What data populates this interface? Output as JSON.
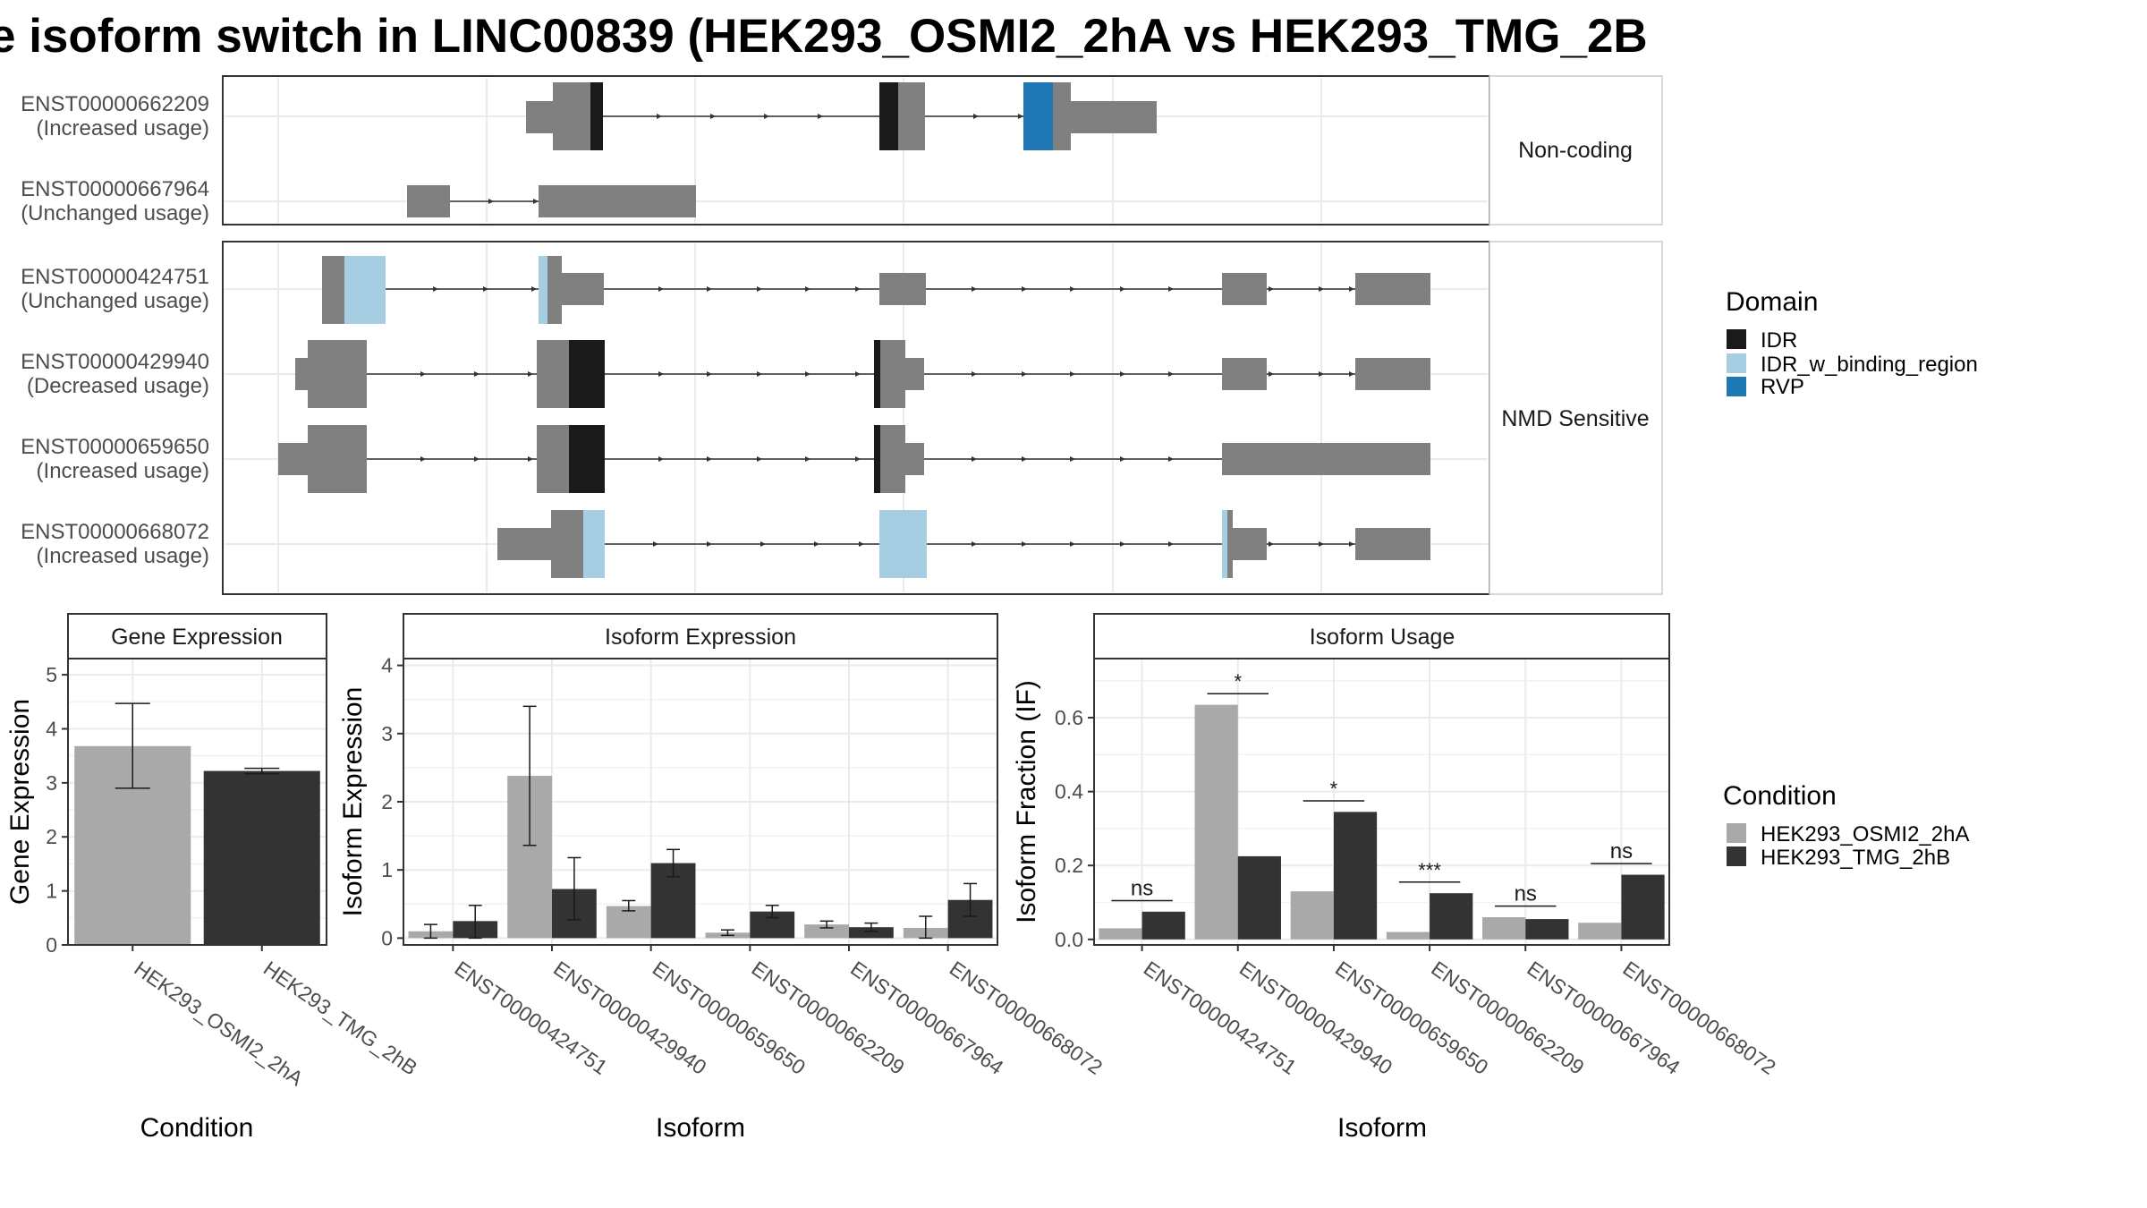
{
  "title": "e isoform switch in LINC00839 (HEK293_OSMI2_2hA vs HEK293_TMG_2B",
  "colors": {
    "exon": "#808080",
    "IDR": "#1a1a1a",
    "IDR_w_binding_region": "#a6cee3",
    "RVP": "#1f78b4",
    "cond_a": "#a9a9a9",
    "cond_b": "#333333"
  },
  "structure": {
    "facets": [
      {
        "label": "Non-coding",
        "transcripts": [
          {
            "id": "ENST00000662209",
            "usage": "(Increased usage)"
          },
          {
            "id": "ENST00000667964",
            "usage": "(Unchanged usage)"
          }
        ]
      },
      {
        "label": "NMD Sensitive",
        "transcripts": [
          {
            "id": "ENST00000424751",
            "usage": "(Unchanged usage)"
          },
          {
            "id": "ENST00000429940",
            "usage": "(Decreased usage)"
          },
          {
            "id": "ENST00000659650",
            "usage": "(Increased usage)"
          },
          {
            "id": "ENST00000668072",
            "usage": "(Increased usage)"
          }
        ]
      }
    ],
    "domain_legend": {
      "title": "Domain",
      "items": [
        {
          "name": "IDR",
          "color": "#1a1a1a"
        },
        {
          "name": "IDR_w_binding_region",
          "color": "#a6cee3"
        },
        {
          "name": "RVP",
          "color": "#1f78b4"
        }
      ]
    }
  },
  "chart_data": [
    {
      "type": "bar",
      "title": "Gene Expression",
      "xlabel": "Condition",
      "ylabel": "Gene Expression",
      "ylim": [
        0,
        5.3
      ],
      "yticks": [
        0,
        1,
        2,
        3,
        4,
        5
      ],
      "categories": [
        "HEK293_OSMI2_2hA",
        "HEK293_TMG_2hB"
      ],
      "values": [
        3.68,
        3.22
      ],
      "error_low": [
        2.9,
        3.17
      ],
      "error_high": [
        4.47,
        3.27
      ],
      "colors": [
        "#a9a9a9",
        "#333333"
      ]
    },
    {
      "type": "bar",
      "title": "Isoform Expression",
      "xlabel": "Isoform",
      "ylabel": "Isoform Expression",
      "ylim": [
        -0.1,
        4.1
      ],
      "yticks": [
        0,
        1,
        2,
        3,
        4
      ],
      "categories": [
        "ENST00000424751",
        "ENST00000429940",
        "ENST00000659650",
        "ENST00000662209",
        "ENST00000667964",
        "ENST00000668072"
      ],
      "series": [
        {
          "name": "HEK293_OSMI2_2hA",
          "values": [
            0.1,
            2.38,
            0.47,
            0.08,
            0.2,
            0.15
          ],
          "error_low": [
            0.0,
            1.36,
            0.4,
            0.04,
            0.15,
            0.0
          ],
          "error_high": [
            0.2,
            3.4,
            0.55,
            0.12,
            0.25,
            0.32
          ]
        },
        {
          "name": "HEK293_TMG_2hB",
          "values": [
            0.25,
            0.72,
            1.1,
            0.39,
            0.16,
            0.56
          ],
          "error_low": [
            0.0,
            0.27,
            0.9,
            0.3,
            0.1,
            0.32
          ],
          "error_high": [
            0.48,
            1.18,
            1.3,
            0.48,
            0.22,
            0.8
          ]
        }
      ]
    },
    {
      "type": "bar",
      "title": "Isoform Usage",
      "xlabel": "Isoform",
      "ylabel": "Isoform Fraction (IF)",
      "ylim": [
        -0.015,
        0.76
      ],
      "yticks": [
        0.0,
        0.2,
        0.4,
        0.6
      ],
      "ytick_labels": [
        "0.0",
        "0.2",
        "0.4",
        "0.6"
      ],
      "categories": [
        "ENST00000424751",
        "ENST00000429940",
        "ENST00000659650",
        "ENST00000662209",
        "ENST00000667964",
        "ENST00000668072"
      ],
      "series": [
        {
          "name": "HEK293_OSMI2_2hA",
          "values": [
            0.03,
            0.635,
            0.13,
            0.02,
            0.06,
            0.045
          ]
        },
        {
          "name": "HEK293_TMG_2hB",
          "values": [
            0.075,
            0.225,
            0.345,
            0.125,
            0.055,
            0.175
          ]
        }
      ],
      "significance": [
        "ns",
        "*",
        "*",
        "***",
        "ns",
        "ns"
      ],
      "significance_y": [
        0.105,
        0.665,
        0.375,
        0.155,
        0.09,
        0.205
      ]
    }
  ],
  "condition_legend": {
    "title": "Condition",
    "items": [
      {
        "name": "HEK293_OSMI2_2hA",
        "color": "#a9a9a9"
      },
      {
        "name": "HEK293_TMG_2hB",
        "color": "#333333"
      }
    ]
  }
}
